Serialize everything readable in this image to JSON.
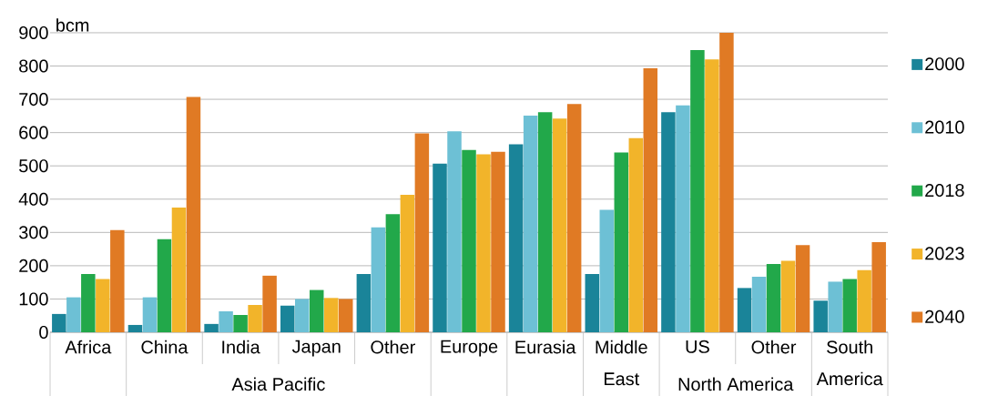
{
  "chart_data": {
    "type": "bar",
    "ylabel": "bcm",
    "categories": [
      "Africa",
      "China",
      "India",
      "Japan",
      "Other",
      "Europe",
      "Eurasia",
      "Middle East",
      "US",
      "Other",
      "South America"
    ],
    "series": [
      {
        "name": "2000",
        "color": "#1a8499",
        "values": [
          55,
          22,
          25,
          80,
          175,
          507,
          565,
          175,
          661,
          133,
          95
        ]
      },
      {
        "name": "2010",
        "color": "#6dc0d5",
        "values": [
          105,
          105,
          63,
          100,
          315,
          604,
          651,
          368,
          682,
          167,
          152
        ]
      },
      {
        "name": "2018",
        "color": "#22a84a",
        "values": [
          175,
          280,
          52,
          127,
          355,
          548,
          661,
          540,
          848,
          205,
          160
        ]
      },
      {
        "name": "2023",
        "color": "#f2b42a",
        "values": [
          160,
          375,
          82,
          103,
          413,
          535,
          642,
          583,
          820,
          215,
          187
        ]
      },
      {
        "name": "2040",
        "color": "#e07a24",
        "values": [
          307,
          707,
          170,
          100,
          598,
          542,
          686,
          793,
          900,
          262,
          271
        ]
      }
    ],
    "ylim": [
      0,
      900
    ],
    "yticks": [
      0,
      100,
      200,
      300,
      400,
      500,
      600,
      700,
      800,
      900
    ],
    "grid": "y",
    "legend": "right",
    "annotations": [
      "Asia Pacific",
      "North America"
    ]
  }
}
